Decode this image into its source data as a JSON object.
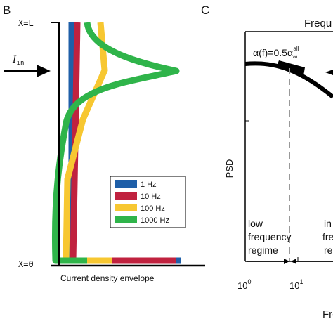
{
  "chart_data": [
    {
      "panel": "B",
      "type": "line",
      "xlabel": "Current density envelope",
      "y_top_label": "X=L",
      "y_bottom_label": "X=0",
      "input_label": "I",
      "input_label_sub": "in",
      "legend_placement": "lower-right",
      "series": [
        {
          "name": "1 Hz",
          "color": "#1f5fa8"
        },
        {
          "name": "10 Hz",
          "color": "#c0223f"
        },
        {
          "name": "100 Hz",
          "color": "#f7c731"
        },
        {
          "name": "1000 Hz",
          "color": "#2fb44a"
        }
      ]
    },
    {
      "panel": "C",
      "type": "line",
      "title": "Frequ",
      "ylabel": "PSD",
      "xlabel": "Fre",
      "x_scale": "log",
      "x_ticks": [
        {
          "base": "10",
          "exp": "0"
        },
        {
          "base": "10",
          "exp": "1"
        }
      ],
      "annotation": {
        "main": "α(f)=0.5α",
        "sub": "∞",
        "sup": "all"
      },
      "regime_left": [
        "low",
        "frequency",
        "regime"
      ],
      "regime_right": [
        "in",
        "fre",
        "re"
      ]
    }
  ]
}
